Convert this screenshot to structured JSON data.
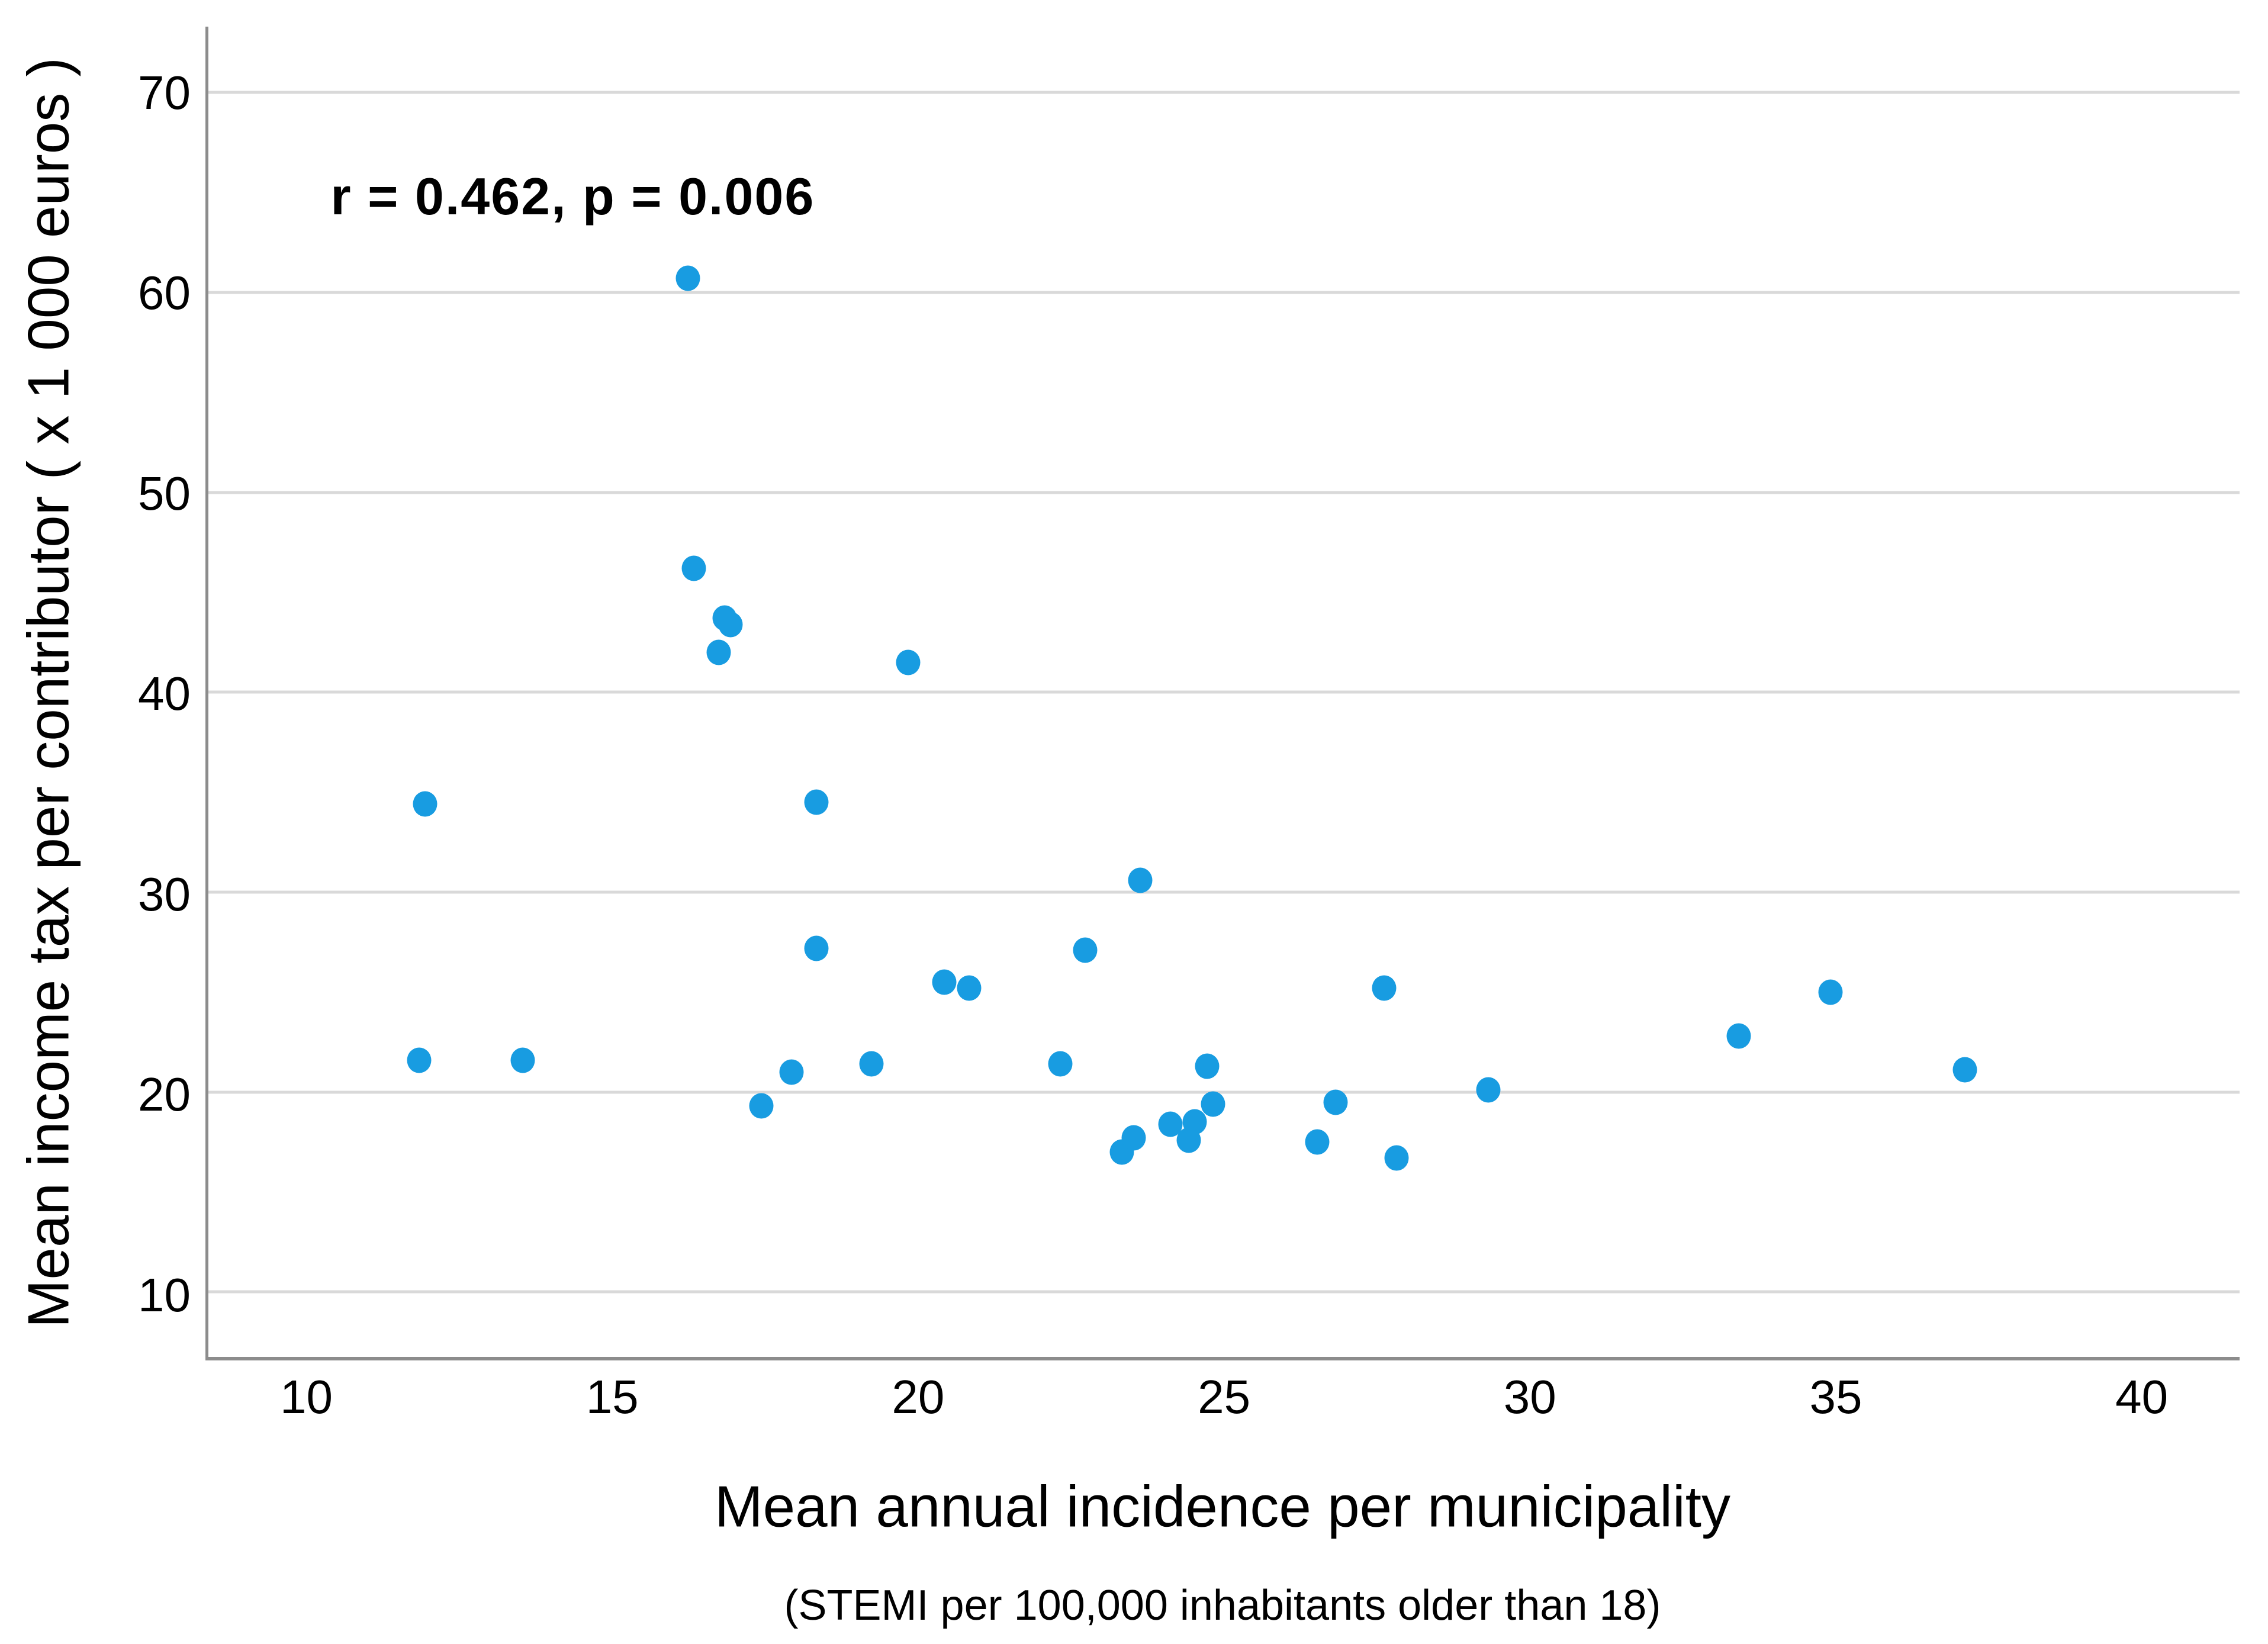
{
  "chart_data": {
    "type": "scatter",
    "annotation": "r = 0.462, p = 0.006",
    "xlabel": "Mean annual incidence per municipality",
    "xlabel_subtitle": "(STEMI per 100,000 inhabitants older than 18)",
    "ylabel": "Mean income tax per contributor ( x 1 000 euros )",
    "x_ticks": [
      10,
      15,
      20,
      25,
      30,
      35,
      40
    ],
    "y_ticks": [
      10,
      20,
      30,
      40,
      50,
      60,
      70
    ],
    "xlim": [
      8.35,
      41.6
    ],
    "ylim": [
      6.75,
      73.3
    ],
    "grid": "horizontal-only",
    "legend": "none",
    "point_color": "#189ce1",
    "gridline_color": "#d9d9d9",
    "axis_color": "#8c8c8c",
    "annotation_position": {
      "x": 10.35,
      "y": 64.8
    },
    "points": [
      [
        11.8,
        21.6
      ],
      [
        11.9,
        34.4
      ],
      [
        13.5,
        21.6
      ],
      [
        16.2,
        60.7
      ],
      [
        16.3,
        46.2
      ],
      [
        16.7,
        42.0
      ],
      [
        16.8,
        43.7
      ],
      [
        16.9,
        43.4
      ],
      [
        17.4,
        19.3
      ],
      [
        17.9,
        21.0
      ],
      [
        18.3,
        34.5
      ],
      [
        18.3,
        27.2
      ],
      [
        19.2,
        21.4
      ],
      [
        19.8,
        41.5
      ],
      [
        20.4,
        25.5
      ],
      [
        20.8,
        25.2
      ],
      [
        22.3,
        21.4
      ],
      [
        22.7,
        27.1
      ],
      [
        23.3,
        17.0
      ],
      [
        23.5,
        17.7
      ],
      [
        23.6,
        30.6
      ],
      [
        24.1,
        18.4
      ],
      [
        24.4,
        17.6
      ],
      [
        24.5,
        18.5
      ],
      [
        24.7,
        21.3
      ],
      [
        24.8,
        19.4
      ],
      [
        26.5,
        17.5
      ],
      [
        26.8,
        19.5
      ],
      [
        27.6,
        25.2
      ],
      [
        27.8,
        16.7
      ],
      [
        29.3,
        20.1
      ],
      [
        33.4,
        22.8
      ],
      [
        34.9,
        25.0
      ],
      [
        37.1,
        21.1
      ]
    ]
  }
}
